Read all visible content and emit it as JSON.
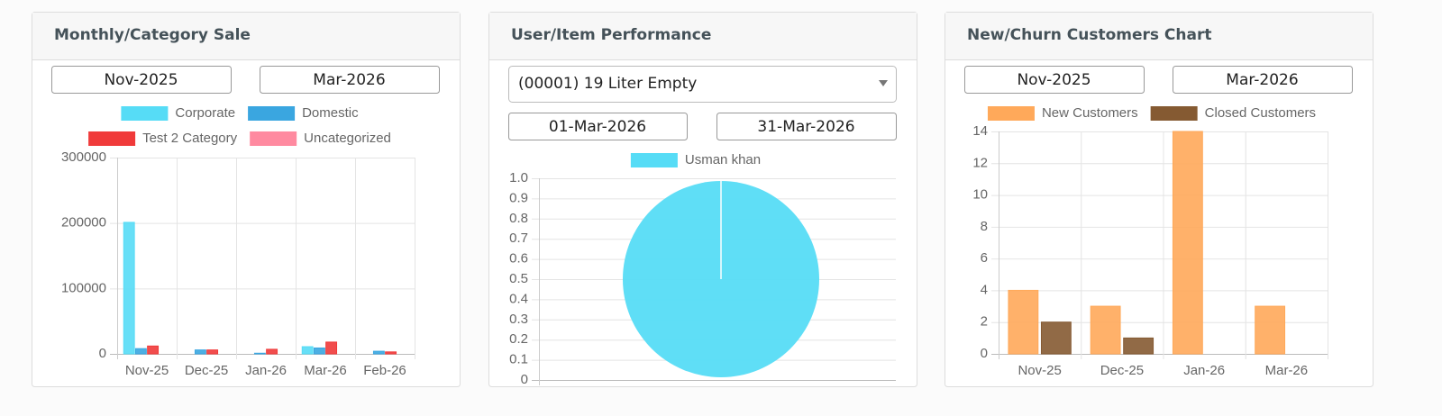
{
  "panels": [
    {
      "title": "Monthly/Category Sale",
      "fields": [
        "Nov-2025",
        "Mar-2026"
      ]
    },
    {
      "title": "User/Item Performance",
      "dropdown": "(00001) 19 Liter Empty",
      "fields": [
        "01-Mar-2026",
        "31-Mar-2026"
      ]
    },
    {
      "title": "New/Churn Customers Chart",
      "fields": [
        "Nov-2025",
        "Mar-2026"
      ]
    }
  ],
  "chart_data": [
    {
      "type": "bar",
      "categories": [
        "Nov-25",
        "Dec-25",
        "Jan-26",
        "Mar-26",
        "Feb-26"
      ],
      "series": [
        {
          "name": "Corporate",
          "color": "#56dcf6",
          "values": [
            201000,
            0,
            0,
            11000,
            0
          ]
        },
        {
          "name": "Domestic",
          "color": "#3aa6e0",
          "values": [
            8000,
            6000,
            1000,
            9000,
            4000
          ]
        },
        {
          "name": "Test 2 Category",
          "color": "#f03a3a",
          "values": [
            12000,
            6000,
            7000,
            18000,
            3000
          ]
        },
        {
          "name": "Uncategorized",
          "color": "#ff8aa0",
          "values": [
            0,
            0,
            0,
            0,
            0
          ]
        }
      ],
      "ylim": [
        0,
        300000
      ],
      "yticks": [
        0,
        100000,
        200000,
        300000
      ],
      "grid": true
    },
    {
      "type": "pie",
      "categories": [
        "Usman khan"
      ],
      "values": [
        1
      ],
      "colors": [
        "#56dcf6"
      ],
      "ylim": [
        0,
        1
      ],
      "yticks": [
        0,
        0.1,
        0.2,
        0.3,
        0.4,
        0.5,
        0.6,
        0.7,
        0.8,
        0.9,
        {
          "value": 1,
          "label": "1.0"
        }
      ],
      "grid": true
    },
    {
      "type": "bar",
      "categories": [
        "Nov-25",
        "Dec-25",
        "Jan-26",
        "Mar-26"
      ],
      "series": [
        {
          "name": "New Customers",
          "color": "#ffa95a",
          "values": [
            4,
            3,
            14,
            3
          ]
        },
        {
          "name": "Closed Customers",
          "color": "#855a32",
          "values": [
            2,
            1,
            0,
            0
          ]
        }
      ],
      "ylim": [
        0,
        14
      ],
      "yticks": [
        0,
        2,
        4,
        6,
        8,
        10,
        12,
        14
      ],
      "grid": true
    }
  ]
}
